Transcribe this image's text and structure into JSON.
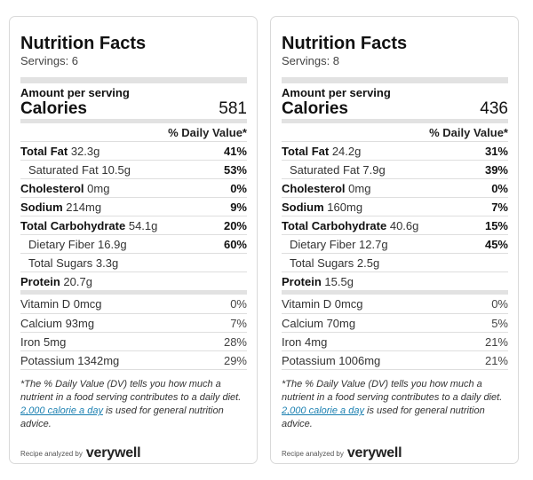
{
  "labels": [
    {
      "title": "Nutrition Facts",
      "servings": "Servings: 6",
      "amount_per_serving": "Amount per serving",
      "calories_label": "Calories",
      "calories_value": "581",
      "dv_header": "% Daily Value*",
      "nutrients": [
        {
          "name": "Total Fat",
          "amount": "32.3g",
          "dv": "41%"
        },
        {
          "name": "Saturated Fat",
          "amount": "10.5g",
          "dv": "53%"
        },
        {
          "name": "Cholesterol",
          "amount": "0mg",
          "dv": "0%"
        },
        {
          "name": "Sodium",
          "amount": "214mg",
          "dv": "9%"
        },
        {
          "name": "Total Carbohydrate",
          "amount": "54.1g",
          "dv": "20%"
        },
        {
          "name": "Dietary Fiber",
          "amount": "16.9g",
          "dv": "60%"
        },
        {
          "name": "Total Sugars",
          "amount": "3.3g",
          "dv": ""
        },
        {
          "name": "Protein",
          "amount": "20.7g",
          "dv": ""
        }
      ],
      "vitamins": [
        {
          "label": "Vitamin D 0mcg",
          "dv": "0%"
        },
        {
          "label": "Calcium 93mg",
          "dv": "7%"
        },
        {
          "label": "Iron 5mg",
          "dv": "28%"
        },
        {
          "label": "Potassium 1342mg",
          "dv": "29%"
        }
      ],
      "footnote_pre": "*The % Daily Value (DV) tells you how much a nutrient in a food serving contributes to a daily diet. ",
      "footnote_link": "2,000 calorie a day",
      "footnote_post": " is used for general nutrition advice.",
      "analyzed_by": "Recipe analyzed by",
      "brand": "verywell"
    },
    {
      "title": "Nutrition Facts",
      "servings": "Servings: 8",
      "amount_per_serving": "Amount per serving",
      "calories_label": "Calories",
      "calories_value": "436",
      "dv_header": "% Daily Value*",
      "nutrients": [
        {
          "name": "Total Fat",
          "amount": "24.2g",
          "dv": "31%"
        },
        {
          "name": "Saturated Fat",
          "amount": "7.9g",
          "dv": "39%"
        },
        {
          "name": "Cholesterol",
          "amount": "0mg",
          "dv": "0%"
        },
        {
          "name": "Sodium",
          "amount": "160mg",
          "dv": "7%"
        },
        {
          "name": "Total Carbohydrate",
          "amount": "40.6g",
          "dv": "15%"
        },
        {
          "name": "Dietary Fiber",
          "amount": "12.7g",
          "dv": "45%"
        },
        {
          "name": "Total Sugars",
          "amount": "2.5g",
          "dv": ""
        },
        {
          "name": "Protein",
          "amount": "15.5g",
          "dv": ""
        }
      ],
      "vitamins": [
        {
          "label": "Vitamin D 0mcg",
          "dv": "0%"
        },
        {
          "label": "Calcium 70mg",
          "dv": "5%"
        },
        {
          "label": "Iron 4mg",
          "dv": "21%"
        },
        {
          "label": "Potassium 1006mg",
          "dv": "21%"
        }
      ],
      "footnote_pre": "*The % Daily Value (DV) tells you how much a nutrient in a food serving contributes to a daily diet. ",
      "footnote_link": "2,000 calorie a day",
      "footnote_post": " is used for general nutrition advice.",
      "analyzed_by": "Recipe analyzed by",
      "brand": "verywell"
    }
  ]
}
